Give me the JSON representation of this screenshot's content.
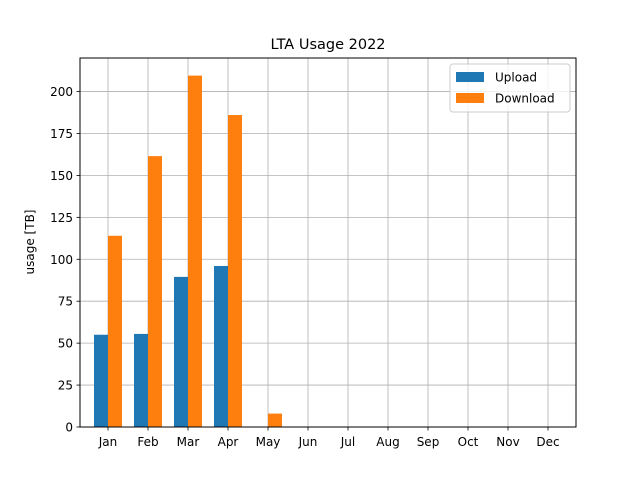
{
  "chart_data": {
    "type": "bar",
    "title": "LTA Usage 2022",
    "xlabel": "",
    "ylabel": "usage [TB]",
    "categories": [
      "Jan",
      "Feb",
      "Mar",
      "Apr",
      "May",
      "Jun",
      "Jul",
      "Aug",
      "Sep",
      "Oct",
      "Nov",
      "Dec"
    ],
    "series": [
      {
        "name": "Upload",
        "color": "#1f77b4",
        "values": [
          55,
          55.5,
          89.5,
          96,
          0,
          0,
          0,
          0,
          0,
          0,
          0,
          0
        ]
      },
      {
        "name": "Download",
        "color": "#ff7f0e",
        "values": [
          114,
          161.5,
          209.5,
          186,
          8,
          0,
          0,
          0,
          0,
          0,
          0,
          0
        ]
      }
    ],
    "ylim": [
      0,
      220
    ],
    "yticks": [
      0,
      25,
      50,
      75,
      100,
      125,
      150,
      175,
      200
    ],
    "grid": true,
    "legend_position": "top-right"
  }
}
